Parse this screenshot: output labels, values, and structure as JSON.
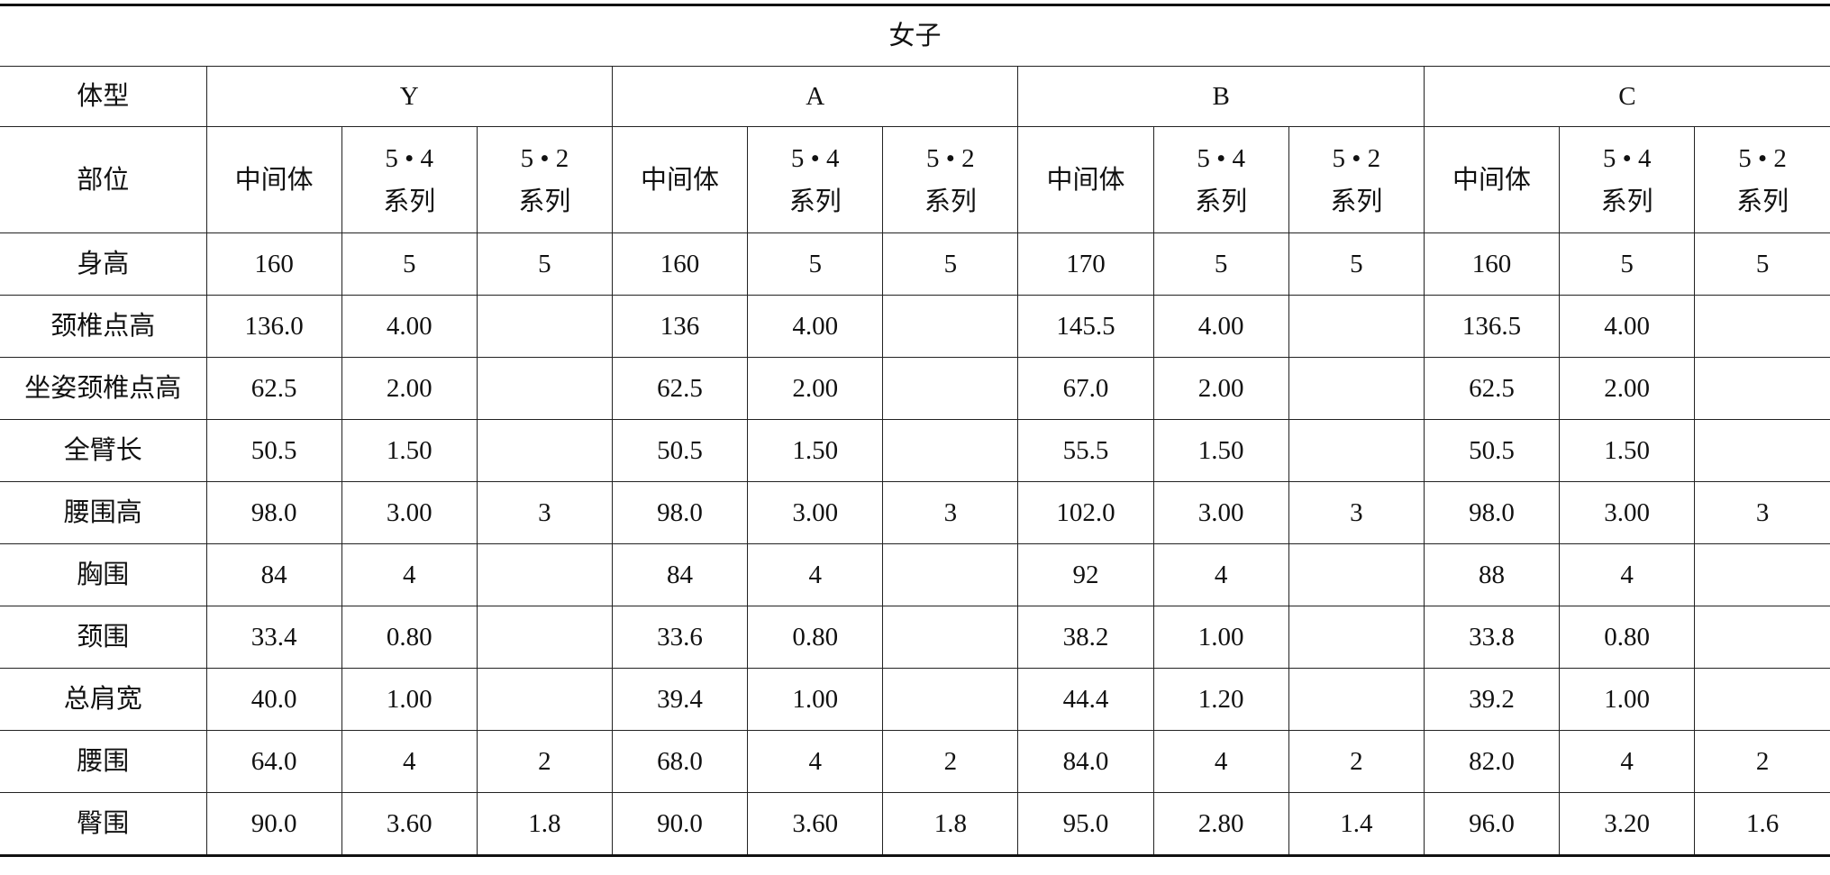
{
  "title": "女子",
  "header": {
    "label": "体型",
    "groups": [
      "Y",
      "A",
      "B",
      "C"
    ]
  },
  "subheader": {
    "label": "部位",
    "columns": [
      "中间体",
      "5 • 4\n系列",
      "5 • 2\n系列",
      "中间体",
      "5 • 4\n系列",
      "5 • 2\n系列",
      "中间体",
      "5 • 4\n系列",
      "5 • 2\n系列",
      "中间体",
      "5 • 4\n系列",
      "5 • 2\n系列"
    ]
  },
  "rows": [
    {
      "label": "身高",
      "cells": [
        "160",
        "5",
        "5",
        "160",
        "5",
        "5",
        "170",
        "5",
        "5",
        "160",
        "5",
        "5"
      ]
    },
    {
      "label": "颈椎点高",
      "cells": [
        "136.0",
        "4.00",
        null,
        "136",
        "4.00",
        null,
        "145.5",
        "4.00",
        null,
        "136.5",
        "4.00",
        null
      ]
    },
    {
      "label": "坐姿颈椎点高",
      "cells": [
        "62.5",
        "2.00",
        null,
        "62.5",
        "2.00",
        null,
        "67.0",
        "2.00",
        null,
        "62.5",
        "2.00",
        null
      ]
    },
    {
      "label": "全臂长",
      "cells": [
        "50.5",
        "1.50",
        null,
        "50.5",
        "1.50",
        null,
        "55.5",
        "1.50",
        null,
        "50.5",
        "1.50",
        null
      ]
    },
    {
      "label": "腰围高",
      "cells": [
        "98.0",
        "3.00",
        "3",
        "98.0",
        "3.00",
        "3",
        "102.0",
        "3.00",
        "3",
        "98.0",
        "3.00",
        "3"
      ]
    },
    {
      "label": "胸围",
      "cells": [
        "84",
        "4",
        null,
        "84",
        "4",
        null,
        "92",
        "4",
        null,
        "88",
        "4",
        null
      ]
    },
    {
      "label": "颈围",
      "cells": [
        "33.4",
        "0.80",
        null,
        "33.6",
        "0.80",
        null,
        "38.2",
        "1.00",
        null,
        "33.8",
        "0.80",
        null
      ]
    },
    {
      "label": "总肩宽",
      "cells": [
        "40.0",
        "1.00",
        null,
        "39.4",
        "1.00",
        null,
        "44.4",
        "1.20",
        null,
        "39.2",
        "1.00",
        null
      ]
    },
    {
      "label": "腰围",
      "cells": [
        "64.0",
        "4",
        "2",
        "68.0",
        "4",
        "2",
        "84.0",
        "4",
        "2",
        "82.0",
        "4",
        "2"
      ]
    },
    {
      "label": "臀围",
      "cells": [
        "90.0",
        "3.60",
        "1.8",
        "90.0",
        "3.60",
        "1.8",
        "95.0",
        "2.80",
        "1.4",
        "96.0",
        "3.20",
        "1.6"
      ]
    }
  ]
}
